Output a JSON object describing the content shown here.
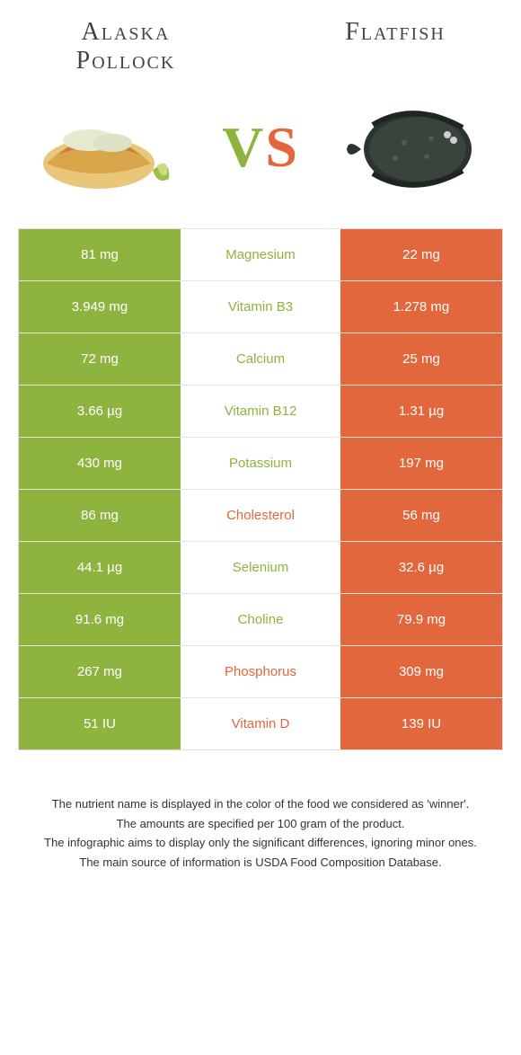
{
  "colors": {
    "left_food": "#8fb33f",
    "right_food": "#e2673c",
    "row_border": "#e8e5e0",
    "text_dark": "#333333",
    "bg": "#ffffff"
  },
  "foods": {
    "left": {
      "title": "Alaska Pollock"
    },
    "right": {
      "title": "Flatfish"
    }
  },
  "vs": {
    "v": "V",
    "s": "S"
  },
  "nutrients": [
    {
      "name": "Magnesium",
      "left": "81 mg",
      "right": "22 mg",
      "winner": "left"
    },
    {
      "name": "Vitamin B3",
      "left": "3.949 mg",
      "right": "1.278 mg",
      "winner": "left"
    },
    {
      "name": "Calcium",
      "left": "72 mg",
      "right": "25 mg",
      "winner": "left"
    },
    {
      "name": "Vitamin B12",
      "left": "3.66 µg",
      "right": "1.31 µg",
      "winner": "left"
    },
    {
      "name": "Potassium",
      "left": "430 mg",
      "right": "197 mg",
      "winner": "left"
    },
    {
      "name": "Cholesterol",
      "left": "86 mg",
      "right": "56 mg",
      "winner": "right"
    },
    {
      "name": "Selenium",
      "left": "44.1 µg",
      "right": "32.6 µg",
      "winner": "left"
    },
    {
      "name": "Choline",
      "left": "91.6 mg",
      "right": "79.9 mg",
      "winner": "left"
    },
    {
      "name": "Phosphorus",
      "left": "267 mg",
      "right": "309 mg",
      "winner": "right"
    },
    {
      "name": "Vitamin D",
      "left": "51 IU",
      "right": "139 IU",
      "winner": "right"
    }
  ],
  "footnotes": [
    "The nutrient name is displayed in the color of the food we considered as 'winner'.",
    "The amounts are specified per 100 gram of the product.",
    "The infographic aims to display only the significant differences, ignoring minor ones.",
    "The main source of information is USDA Food Composition Database."
  ]
}
